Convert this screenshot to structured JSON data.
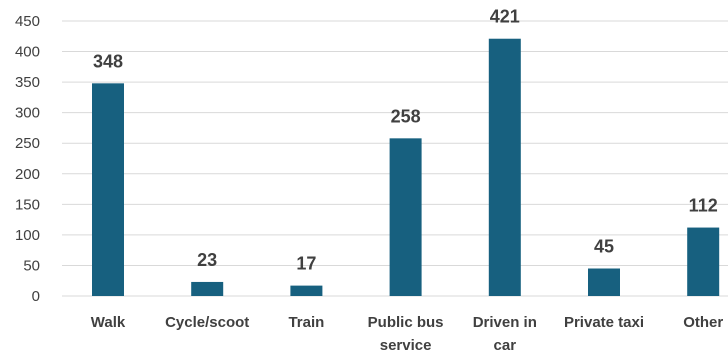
{
  "chart_data": {
    "type": "bar",
    "categories": [
      "Walk",
      "Cycle/scoot",
      "Train",
      "Public bus service",
      "Driven in car",
      "Private taxi",
      "Other"
    ],
    "category_lines": [
      [
        "Walk"
      ],
      [
        "Cycle/scoot"
      ],
      [
        "Train"
      ],
      [
        "Public bus",
        "service"
      ],
      [
        "Driven in",
        "car"
      ],
      [
        "Private taxi"
      ],
      [
        "Other"
      ]
    ],
    "values": [
      348,
      23,
      17,
      258,
      421,
      45,
      112
    ],
    "data_labels": [
      "348",
      "23",
      "17",
      "258",
      "421",
      "45",
      "112"
    ],
    "y_ticks": [
      0,
      50,
      100,
      150,
      200,
      250,
      300,
      350,
      400,
      450
    ],
    "ylim": [
      0,
      450
    ],
    "grid": true,
    "legend": "none",
    "title": "",
    "xlabel": "",
    "ylabel": "",
    "bar_color": "#17607f",
    "gridline_color": "#d9d9d9"
  }
}
